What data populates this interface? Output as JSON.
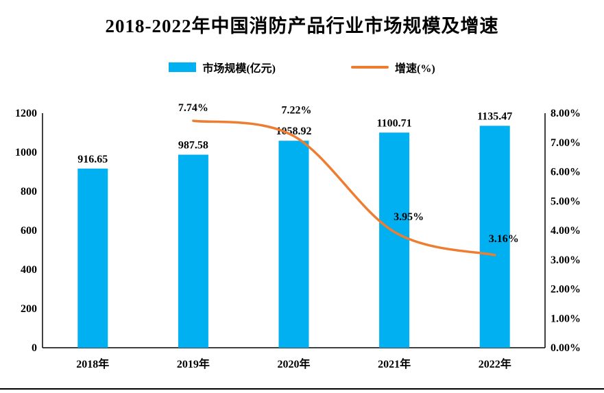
{
  "chart_data": {
    "type": "bar+line",
    "title": "2018-2022年中国消防产品行业市场规模及增速",
    "categories": [
      "2018年",
      "2019年",
      "2020年",
      "2021年",
      "2022年"
    ],
    "series": [
      {
        "name": "市场规模(亿元)",
        "type": "bar",
        "axis": "left",
        "color": "#00B0F0",
        "values": [
          916.65,
          987.58,
          1058.92,
          1100.71,
          1135.47
        ],
        "labels": [
          "916.65",
          "987.58",
          "1058.92",
          "1100.71",
          "1135.47"
        ]
      },
      {
        "name": "增速(%)",
        "type": "line",
        "axis": "right",
        "color": "#ED7D31",
        "values": [
          null,
          7.74,
          7.22,
          3.95,
          3.16
        ],
        "labels": [
          null,
          "7.74%",
          "7.22%",
          "3.95%",
          "3.16%"
        ]
      }
    ],
    "left_axis": {
      "min": 0,
      "max": 1200,
      "step": 200,
      "ticks": [
        "0",
        "200",
        "400",
        "600",
        "800",
        "1000",
        "1200"
      ]
    },
    "right_axis": {
      "min": 0,
      "max": 8,
      "step": 1,
      "ticks": [
        "0.00%",
        "1.00%",
        "2.00%",
        "3.00%",
        "4.00%",
        "5.00%",
        "6.00%",
        "7.00%",
        "8.00%"
      ]
    },
    "grid": false,
    "legend_position": "top",
    "colors": {
      "bar": "#00B0F0",
      "line": "#ED7D31",
      "text": "#000000",
      "background": "#FFFFFF"
    }
  }
}
